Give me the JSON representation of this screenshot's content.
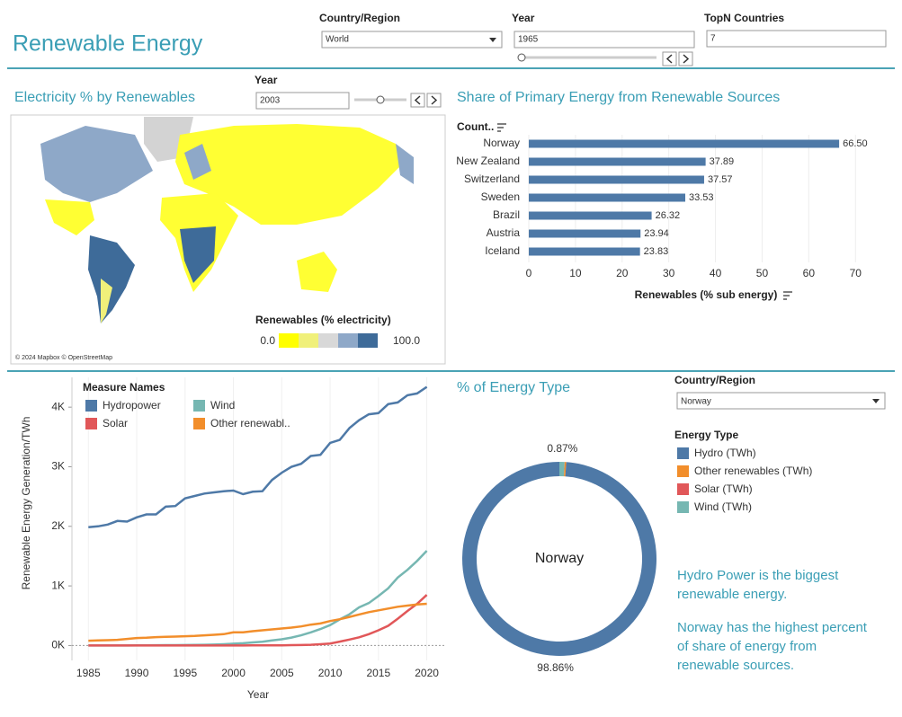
{
  "header": {
    "title": "Renewable Energy",
    "filters": [
      {
        "label": "Country/Region",
        "value": "World"
      },
      {
        "label": "Year",
        "value": "1965"
      },
      {
        "label": "TopN Countries",
        "value": "7"
      }
    ]
  },
  "map": {
    "title": "Electricity % by Renewables",
    "year_label": "Year",
    "year": "2003",
    "legend_title": "Renewables (% electricity)",
    "legend_labels": [
      "0.0",
      "100.0"
    ],
    "credit": "© 2024 Mapbox © OpenStreetMap"
  },
  "pie_filter": {
    "label": "Country/Region",
    "value": "Norway"
  },
  "notes": [
    [
      "Hydro Power is the biggest",
      "renewable energy."
    ],
    [
      "Norway has the highest percent",
      "of share of energy from",
      "renewable sources."
    ]
  ],
  "chart_data": [
    {
      "type": "bar",
      "orientation": "horizontal",
      "title": "Share of Primary Energy from Renewable Sources",
      "category_header": "Count..",
      "categories": [
        "Norway",
        "New Zealand",
        "Switzerland",
        "Sweden",
        "Brazil",
        "Austria",
        "Iceland"
      ],
      "values": [
        66.5,
        37.89,
        37.57,
        33.53,
        26.32,
        23.94,
        23.83
      ],
      "value_labels": [
        "66.50",
        "37.89",
        "37.57",
        "33.53",
        "26.32",
        "23.94",
        "23.83"
      ],
      "color": "#4e79a7",
      "xlabel": "Renewables (% sub energy)",
      "xlim": [
        0,
        71.3
      ],
      "xticks": [
        0,
        10,
        20,
        30,
        40,
        50,
        60,
        70
      ],
      "grid": true
    },
    {
      "type": "line",
      "ylabel": "Renewable Energy Generation/TWh",
      "xlabel": "Year",
      "legend_title": "Measure Names",
      "x": [
        1985,
        1986,
        1987,
        1988,
        1989,
        1990,
        1991,
        1992,
        1993,
        1994,
        1995,
        1996,
        1997,
        1998,
        1999,
        2000,
        2001,
        2002,
        2003,
        2004,
        2005,
        2006,
        2007,
        2008,
        2009,
        2010,
        2011,
        2012,
        2013,
        2014,
        2015,
        2016,
        2017,
        2018,
        2019,
        2020
      ],
      "xlim": [
        1983.3,
        2021.9
      ],
      "xticks": [
        1985,
        1990,
        1995,
        2000,
        2005,
        2010,
        2015,
        2020
      ],
      "ylim": [
        -250,
        4500
      ],
      "yticks": [
        {
          "value": 0,
          "label": "0K"
        },
        {
          "value": 1000,
          "label": "1K"
        },
        {
          "value": 2000,
          "label": "2K"
        },
        {
          "value": 3000,
          "label": "3K"
        },
        {
          "value": 4000,
          "label": "4K"
        }
      ],
      "grid": true,
      "series": [
        {
          "name": "Hydropower",
          "color": "#4e79a7",
          "values": [
            1985,
            2000,
            2030,
            2090,
            2080,
            2150,
            2200,
            2200,
            2330,
            2340,
            2470,
            2510,
            2550,
            2570,
            2590,
            2600,
            2540,
            2580,
            2590,
            2780,
            2900,
            3000,
            3050,
            3180,
            3200,
            3400,
            3450,
            3650,
            3780,
            3880,
            3900,
            4050,
            4080,
            4200,
            4230,
            4340
          ]
        },
        {
          "name": "Wind",
          "color": "#76b7b2",
          "values": [
            0,
            0,
            0,
            0,
            0,
            4,
            4,
            5,
            6,
            7,
            8,
            9,
            12,
            16,
            21,
            31,
            38,
            52,
            63,
            85,
            104,
            133,
            171,
            220,
            276,
            342,
            437,
            523,
            640,
            712,
            830,
            960,
            1140,
            1270,
            1420,
            1590
          ]
        },
        {
          "name": "Solar",
          "color": "#e15759",
          "values": [
            0,
            0,
            0,
            0,
            0,
            0,
            0,
            0,
            0,
            0,
            0,
            0,
            0,
            0,
            0,
            1,
            1,
            2,
            2,
            3,
            4,
            6,
            8,
            12,
            21,
            33,
            65,
            100,
            137,
            190,
            255,
            330,
            450,
            580,
            700,
            850
          ]
        },
        {
          "name": "Other renewabl..",
          "color": "#f28e2b",
          "values": [
            80,
            85,
            90,
            95,
            110,
            125,
            130,
            140,
            145,
            150,
            155,
            160,
            170,
            180,
            190,
            220,
            220,
            240,
            255,
            270,
            285,
            300,
            320,
            350,
            370,
            410,
            440,
            480,
            520,
            560,
            590,
            620,
            650,
            670,
            690,
            700
          ]
        }
      ]
    },
    {
      "type": "pie",
      "donut": true,
      "title": "% of Energy Type",
      "center_label": "Norway",
      "legend_title": "Energy Type",
      "categories": [
        "Hydro (TWh)",
        "Other renewables (TWh)",
        "Solar (TWh)",
        "Wind (TWh)"
      ],
      "values": [
        98.86,
        0.27,
        0,
        0.87
      ],
      "value_labels": [
        "98.86%",
        null,
        null,
        "0.87%"
      ],
      "colors": [
        "#4e79a7",
        "#f28e2b",
        "#e15759",
        "#76b7b2"
      ]
    }
  ]
}
